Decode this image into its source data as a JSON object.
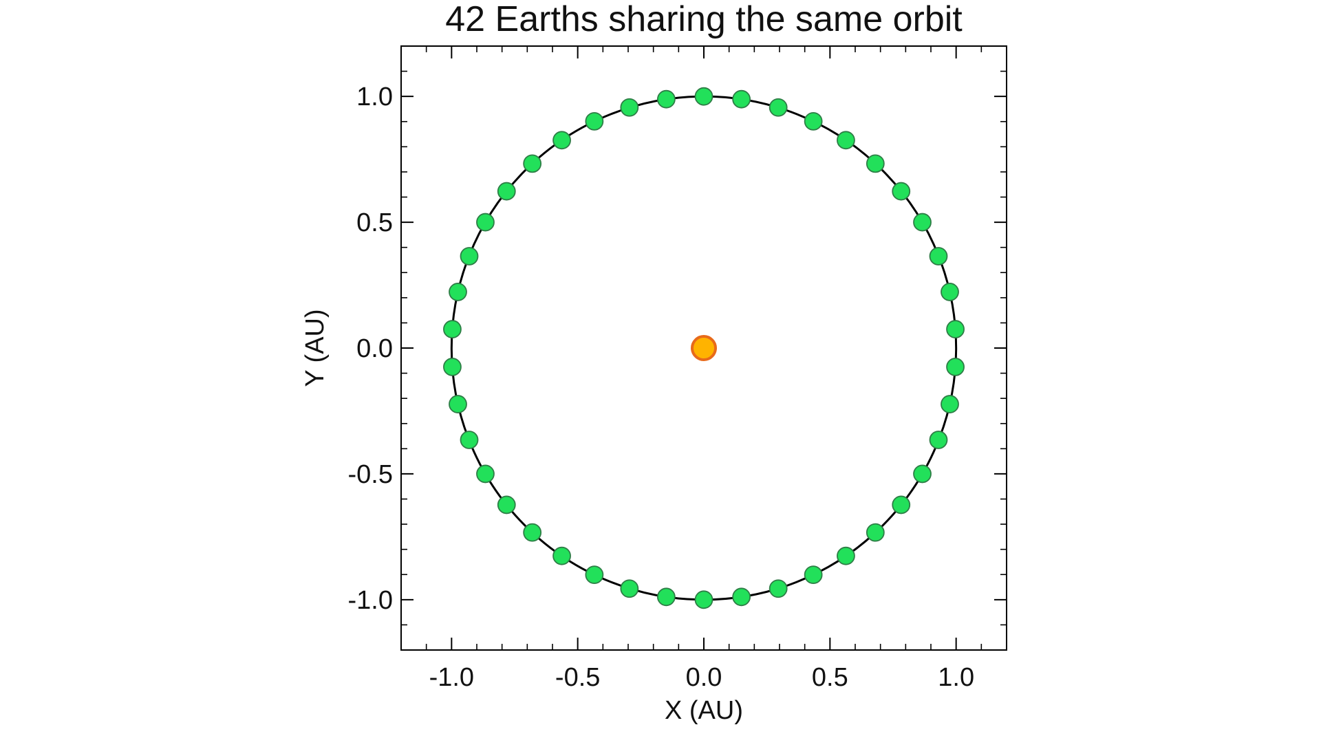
{
  "chart_data": {
    "type": "scatter",
    "title": "42 Earths sharing the same orbit",
    "xlabel": "X (AU)",
    "ylabel": "Y (AU)",
    "xlim": [
      -1.2,
      1.2
    ],
    "ylim": [
      -1.2,
      1.2
    ],
    "xticks": [
      -1.0,
      -0.5,
      0.0,
      0.5,
      1.0
    ],
    "xtick_labels": [
      "-1.0",
      "-0.5",
      "0.0",
      "0.5",
      "1.0"
    ],
    "yticks": [
      -1.0,
      -0.5,
      0.0,
      0.5,
      1.0
    ],
    "ytick_labels": [
      "-1.0",
      "-0.5",
      "0.0",
      "0.5",
      "1.0"
    ],
    "grid": false,
    "legend": "none",
    "orbit": {
      "shape": "circle",
      "center": [
        0.0,
        0.0
      ],
      "radius_au": 1.0,
      "color": "#000000"
    },
    "sun": {
      "x": 0.0,
      "y": 0.0,
      "fill": "#FFB300",
      "stroke": "#E86A1A"
    },
    "series": [
      {
        "marker_fill": "#22E05A",
        "marker_stroke": "#2E7D46",
        "count": 42,
        "radius_au": 1.0,
        "angular_spacing_deg": 8.5714,
        "start_angle_deg": 90.0,
        "x": [
          0.0,
          -0.149,
          -0.295,
          -0.434,
          -0.563,
          -0.68,
          -0.782,
          -0.866,
          -0.93,
          -0.975,
          -0.997,
          -0.997,
          -0.975,
          -0.93,
          -0.866,
          -0.782,
          -0.68,
          -0.563,
          -0.434,
          -0.295,
          -0.149,
          0.0,
          0.149,
          0.295,
          0.434,
          0.563,
          0.68,
          0.782,
          0.866,
          0.93,
          0.975,
          0.997,
          0.997,
          0.975,
          0.93,
          0.866,
          0.782,
          0.68,
          0.563,
          0.434,
          0.295,
          0.149
        ],
        "y": [
          1.0,
          0.989,
          0.956,
          0.901,
          0.826,
          0.733,
          0.623,
          0.5,
          0.365,
          0.223,
          0.075,
          -0.075,
          -0.223,
          -0.365,
          -0.5,
          -0.623,
          -0.733,
          -0.826,
          -0.901,
          -0.956,
          -0.989,
          -1.0,
          -0.989,
          -0.956,
          -0.901,
          -0.826,
          -0.733,
          -0.623,
          -0.5,
          -0.365,
          -0.223,
          -0.075,
          0.075,
          0.223,
          0.365,
          0.5,
          0.623,
          0.733,
          0.826,
          0.901,
          0.956,
          0.989
        ]
      }
    ]
  }
}
